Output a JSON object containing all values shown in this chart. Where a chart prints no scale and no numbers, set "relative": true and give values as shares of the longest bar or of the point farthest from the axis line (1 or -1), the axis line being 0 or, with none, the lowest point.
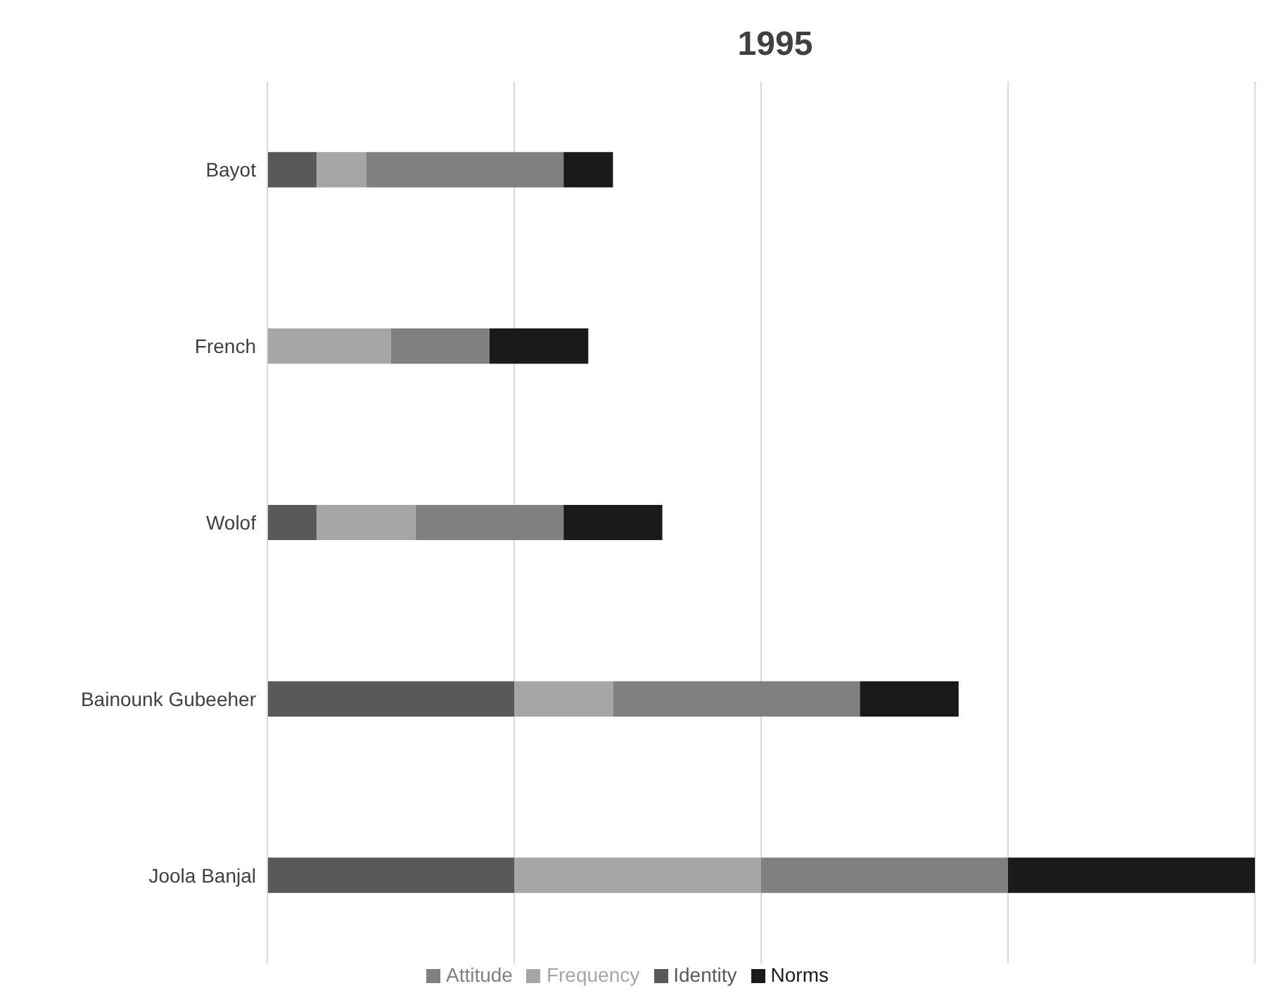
{
  "chart_data": {
    "type": "bar",
    "title": "1995",
    "orientation": "horizontal",
    "stacked": true,
    "relative": true,
    "grid": "x",
    "legend": "bottom",
    "categories": [
      "Bayot",
      "French",
      "Wolof",
      "Bainounk Gubeeher",
      "Joola Banjal"
    ],
    "series": [
      {
        "name": "Identity",
        "color": "#595959",
        "values": [
          0.05,
          0,
          0.05,
          0.25,
          0.25
        ]
      },
      {
        "name": "Frequency",
        "color": "#a6a6a6",
        "values": [
          0.05,
          0.125,
          0.1,
          0.1,
          0.25
        ]
      },
      {
        "name": "Attitude",
        "color": "#808080",
        "values": [
          0.2,
          0.1,
          0.15,
          0.25,
          0.25
        ]
      },
      {
        "name": "Norms",
        "color": "#1a1a1a",
        "values": [
          0.05,
          0.1,
          0.1,
          0.1,
          0.25
        ]
      }
    ]
  }
}
